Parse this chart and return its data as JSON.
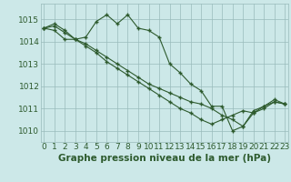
{
  "background_color": "#cce8e8",
  "grid_color": "#99bbbb",
  "line_color": "#2d5a2d",
  "marker_color": "#2d5a2d",
  "xlabel": "Graphe pression niveau de la mer (hPa)",
  "xlabel_fontsize": 7.5,
  "tick_fontsize": 6.5,
  "ylim": [
    1009.5,
    1015.7
  ],
  "yticks": [
    1010,
    1011,
    1012,
    1013,
    1014,
    1015
  ],
  "xlim": [
    -0.3,
    23.3
  ],
  "xticks": [
    0,
    1,
    2,
    3,
    4,
    5,
    6,
    7,
    8,
    9,
    10,
    11,
    12,
    13,
    14,
    15,
    16,
    17,
    18,
    19,
    20,
    21,
    22,
    23
  ],
  "series": [
    [
      1014.6,
      1014.8,
      1014.5,
      1014.1,
      1014.2,
      1014.9,
      1015.2,
      1014.8,
      1015.2,
      1014.6,
      1014.5,
      1014.2,
      1013.0,
      1012.6,
      1012.1,
      1011.8,
      1011.1,
      1011.1,
      1010.0,
      1010.2,
      1010.8,
      1011.1,
      1011.4,
      1011.2
    ],
    [
      1014.6,
      1014.5,
      1014.1,
      1014.1,
      1013.8,
      1013.5,
      1013.1,
      1012.8,
      1012.5,
      1012.2,
      1011.9,
      1011.6,
      1011.3,
      1011.0,
      1010.8,
      1010.5,
      1010.3,
      1010.5,
      1010.7,
      1010.9,
      1010.8,
      1011.0,
      1011.3,
      1011.2
    ],
    [
      1014.6,
      1014.7,
      1014.4,
      1014.1,
      1013.9,
      1013.6,
      1013.3,
      1013.0,
      1012.7,
      1012.4,
      1012.1,
      1011.9,
      1011.7,
      1011.5,
      1011.3,
      1011.2,
      1011.0,
      1010.7,
      1010.5,
      1010.2,
      1010.9,
      1011.1,
      1011.3,
      1011.2
    ]
  ]
}
